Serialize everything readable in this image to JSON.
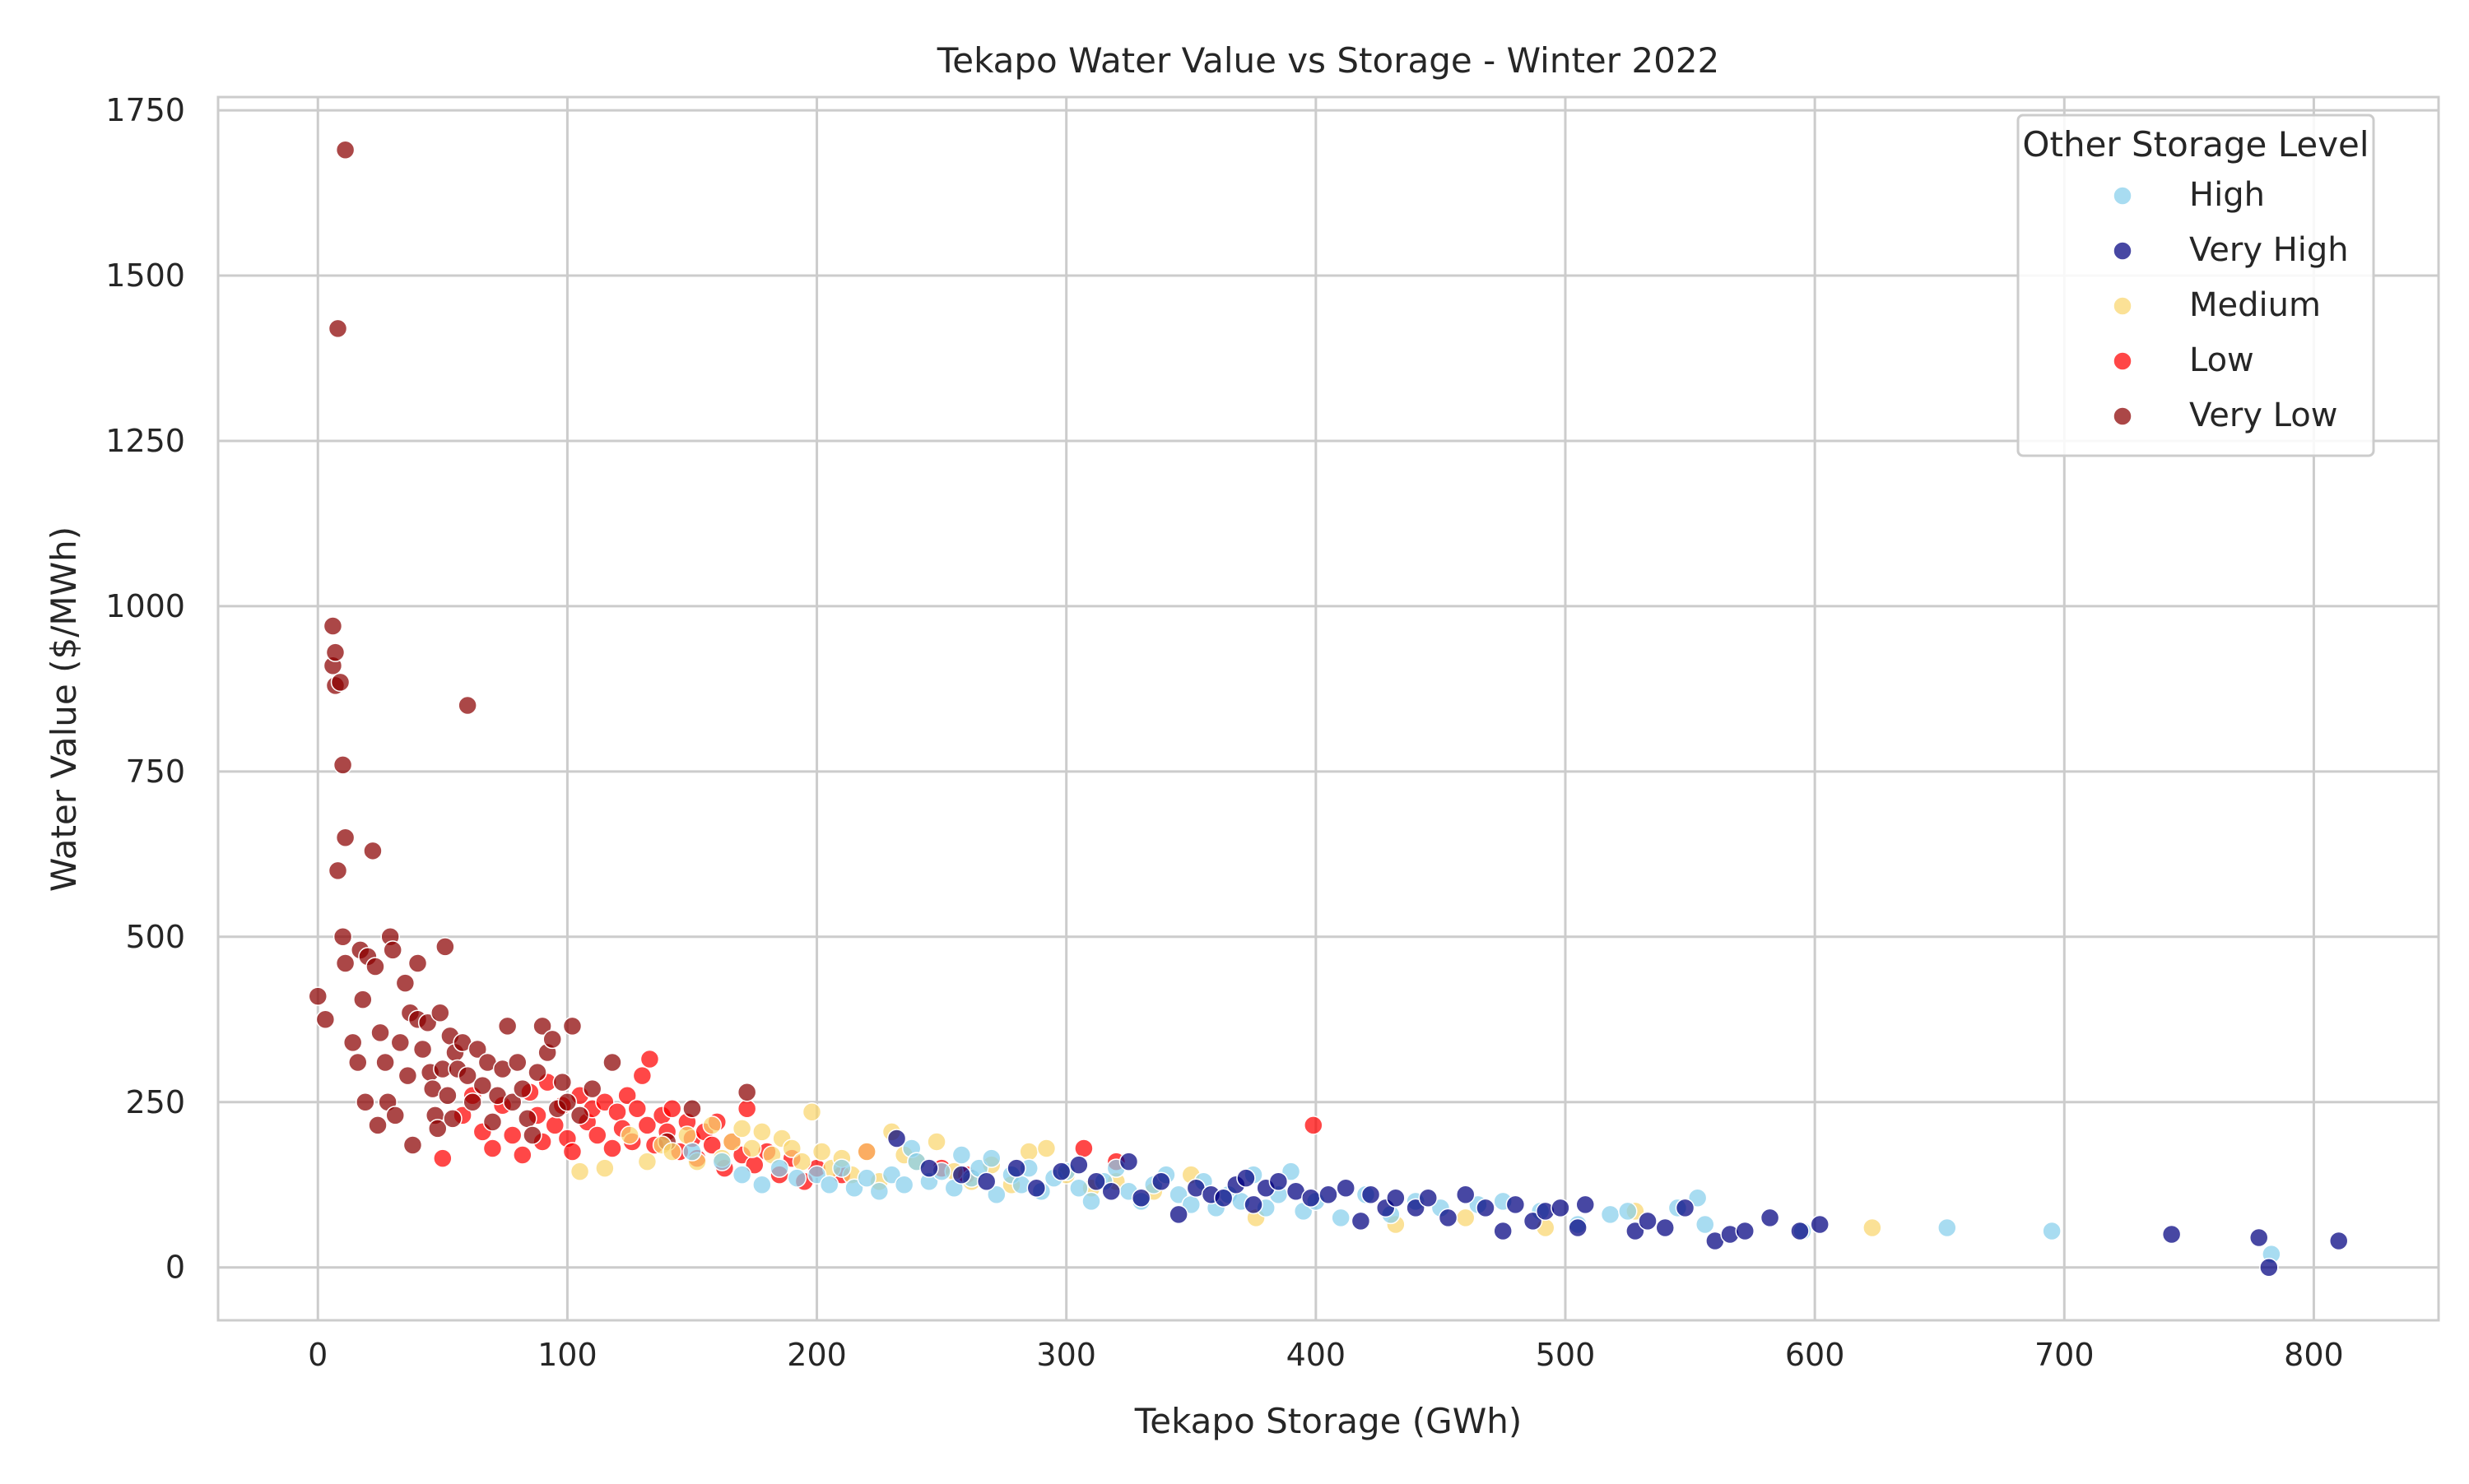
{
  "chart_data": {
    "type": "scatter",
    "title": "Tekapo Water Value vs Storage - Winter 2022",
    "xlabel": "Tekapo Storage (GWh)",
    "ylabel": "Water Value ($/MWh)",
    "xlim": [
      -40,
      850
    ],
    "ylim": [
      -80,
      1770
    ],
    "xticks": [
      0,
      100,
      200,
      300,
      400,
      500,
      600,
      700,
      800
    ],
    "yticks": [
      0,
      250,
      500,
      750,
      1000,
      1250,
      1500,
      1750
    ],
    "grid": true,
    "legend": {
      "title": "Other Storage Level",
      "placement": "top-right"
    },
    "series": [
      {
        "name": "High",
        "color": "#87ceeb",
        "points": [
          [
            150,
            175
          ],
          [
            162,
            160
          ],
          [
            170,
            140
          ],
          [
            178,
            125
          ],
          [
            185,
            150
          ],
          [
            192,
            135
          ],
          [
            200,
            140
          ],
          [
            205,
            125
          ],
          [
            210,
            150
          ],
          [
            215,
            120
          ],
          [
            220,
            135
          ],
          [
            225,
            115
          ],
          [
            230,
            140
          ],
          [
            235,
            125
          ],
          [
            238,
            180
          ],
          [
            240,
            160
          ],
          [
            245,
            130
          ],
          [
            250,
            145
          ],
          [
            255,
            120
          ],
          [
            258,
            170
          ],
          [
            262,
            135
          ],
          [
            265,
            150
          ],
          [
            270,
            165
          ],
          [
            272,
            110
          ],
          [
            278,
            140
          ],
          [
            282,
            125
          ],
          [
            285,
            150
          ],
          [
            290,
            115
          ],
          [
            295,
            135
          ],
          [
            300,
            145
          ],
          [
            305,
            120
          ],
          [
            310,
            100
          ],
          [
            315,
            130
          ],
          [
            320,
            150
          ],
          [
            325,
            115
          ],
          [
            330,
            100
          ],
          [
            335,
            125
          ],
          [
            340,
            140
          ],
          [
            345,
            110
          ],
          [
            350,
            95
          ],
          [
            355,
            130
          ],
          [
            360,
            90
          ],
          [
            365,
            110
          ],
          [
            370,
            100
          ],
          [
            375,
            140
          ],
          [
            380,
            90
          ],
          [
            385,
            110
          ],
          [
            390,
            145
          ],
          [
            395,
            85
          ],
          [
            400,
            100
          ],
          [
            410,
            75
          ],
          [
            420,
            110
          ],
          [
            430,
            80
          ],
          [
            440,
            100
          ],
          [
            450,
            90
          ],
          [
            465,
            95
          ],
          [
            475,
            100
          ],
          [
            490,
            85
          ],
          [
            505,
            65
          ],
          [
            518,
            80
          ],
          [
            525,
            85
          ],
          [
            545,
            90
          ],
          [
            553,
            105
          ],
          [
            556,
            65
          ],
          [
            595,
            55
          ],
          [
            653,
            60
          ],
          [
            695,
            55
          ],
          [
            783,
            20
          ]
        ]
      },
      {
        "name": "Very High",
        "color": "#00007f",
        "points": [
          [
            232,
            195
          ],
          [
            245,
            150
          ],
          [
            258,
            140
          ],
          [
            268,
            130
          ],
          [
            280,
            150
          ],
          [
            288,
            120
          ],
          [
            298,
            145
          ],
          [
            305,
            155
          ],
          [
            312,
            130
          ],
          [
            318,
            115
          ],
          [
            325,
            160
          ],
          [
            330,
            105
          ],
          [
            338,
            130
          ],
          [
            345,
            80
          ],
          [
            352,
            120
          ],
          [
            358,
            110
          ],
          [
            363,
            105
          ],
          [
            368,
            125
          ],
          [
            372,
            135
          ],
          [
            375,
            95
          ],
          [
            380,
            120
          ],
          [
            385,
            130
          ],
          [
            392,
            115
          ],
          [
            398,
            105
          ],
          [
            405,
            110
          ],
          [
            412,
            120
          ],
          [
            418,
            70
          ],
          [
            422,
            110
          ],
          [
            428,
            90
          ],
          [
            432,
            105
          ],
          [
            440,
            90
          ],
          [
            445,
            105
          ],
          [
            453,
            75
          ],
          [
            460,
            110
          ],
          [
            468,
            90
          ],
          [
            475,
            55
          ],
          [
            480,
            95
          ],
          [
            487,
            70
          ],
          [
            492,
            85
          ],
          [
            498,
            90
          ],
          [
            505,
            60
          ],
          [
            508,
            95
          ],
          [
            528,
            55
          ],
          [
            533,
            70
          ],
          [
            540,
            60
          ],
          [
            548,
            90
          ],
          [
            560,
            40
          ],
          [
            566,
            50
          ],
          [
            572,
            55
          ],
          [
            582,
            75
          ],
          [
            594,
            55
          ],
          [
            602,
            65
          ],
          [
            743,
            50
          ],
          [
            778,
            45
          ],
          [
            782,
            0
          ],
          [
            810,
            40
          ]
        ]
      },
      {
        "name": "Medium",
        "color": "#f9d56e",
        "points": [
          [
            105,
            145
          ],
          [
            115,
            150
          ],
          [
            125,
            200
          ],
          [
            132,
            160
          ],
          [
            138,
            185
          ],
          [
            142,
            175
          ],
          [
            148,
            200
          ],
          [
            152,
            160
          ],
          [
            158,
            215
          ],
          [
            162,
            165
          ],
          [
            166,
            190
          ],
          [
            170,
            210
          ],
          [
            174,
            180
          ],
          [
            178,
            205
          ],
          [
            182,
            170
          ],
          [
            186,
            195
          ],
          [
            190,
            180
          ],
          [
            194,
            160
          ],
          [
            198,
            235
          ],
          [
            202,
            175
          ],
          [
            206,
            150
          ],
          [
            210,
            165
          ],
          [
            214,
            140
          ],
          [
            220,
            175
          ],
          [
            225,
            130
          ],
          [
            230,
            205
          ],
          [
            235,
            170
          ],
          [
            240,
            160
          ],
          [
            248,
            190
          ],
          [
            255,
            145
          ],
          [
            262,
            130
          ],
          [
            270,
            155
          ],
          [
            278,
            125
          ],
          [
            285,
            175
          ],
          [
            292,
            180
          ],
          [
            300,
            140
          ],
          [
            310,
            120
          ],
          [
            320,
            130
          ],
          [
            335,
            115
          ],
          [
            350,
            140
          ],
          [
            376,
            75
          ],
          [
            432,
            65
          ],
          [
            460,
            75
          ],
          [
            492,
            60
          ],
          [
            528,
            85
          ],
          [
            623,
            60
          ]
        ]
      },
      {
        "name": "Low",
        "color": "#ff0000",
        "points": [
          [
            50,
            165
          ],
          [
            58,
            230
          ],
          [
            62,
            260
          ],
          [
            66,
            205
          ],
          [
            70,
            180
          ],
          [
            74,
            245
          ],
          [
            78,
            200
          ],
          [
            82,
            170
          ],
          [
            85,
            265
          ],
          [
            88,
            230
          ],
          [
            90,
            190
          ],
          [
            92,
            280
          ],
          [
            95,
            215
          ],
          [
            98,
            245
          ],
          [
            100,
            195
          ],
          [
            102,
            175
          ],
          [
            105,
            260
          ],
          [
            108,
            220
          ],
          [
            110,
            240
          ],
          [
            112,
            200
          ],
          [
            115,
            250
          ],
          [
            118,
            180
          ],
          [
            120,
            235
          ],
          [
            122,
            210
          ],
          [
            124,
            260
          ],
          [
            126,
            190
          ],
          [
            128,
            240
          ],
          [
            130,
            290
          ],
          [
            132,
            215
          ],
          [
            133,
            315
          ],
          [
            135,
            185
          ],
          [
            138,
            230
          ],
          [
            140,
            205
          ],
          [
            142,
            240
          ],
          [
            145,
            175
          ],
          [
            148,
            220
          ],
          [
            150,
            195
          ],
          [
            152,
            165
          ],
          [
            155,
            205
          ],
          [
            158,
            185
          ],
          [
            160,
            220
          ],
          [
            163,
            150
          ],
          [
            166,
            190
          ],
          [
            170,
            170
          ],
          [
            172,
            240
          ],
          [
            175,
            155
          ],
          [
            180,
            175
          ],
          [
            185,
            140
          ],
          [
            190,
            165
          ],
          [
            195,
            130
          ],
          [
            200,
            150
          ],
          [
            210,
            140
          ],
          [
            220,
            175
          ],
          [
            250,
            150
          ],
          [
            260,
            140
          ],
          [
            307,
            180
          ],
          [
            320,
            160
          ],
          [
            399,
            215
          ]
        ]
      },
      {
        "name": "Very Low",
        "color": "#8b0000",
        "points": [
          [
            0,
            410
          ],
          [
            3,
            375
          ],
          [
            6,
            970
          ],
          [
            6,
            910
          ],
          [
            7,
            930
          ],
          [
            7,
            880
          ],
          [
            8,
            600
          ],
          [
            8,
            1420
          ],
          [
            9,
            885
          ],
          [
            10,
            500
          ],
          [
            10,
            760
          ],
          [
            11,
            460
          ],
          [
            11,
            1690
          ],
          [
            11,
            650
          ],
          [
            14,
            340
          ],
          [
            16,
            310
          ],
          [
            17,
            480
          ],
          [
            18,
            405
          ],
          [
            19,
            250
          ],
          [
            20,
            470
          ],
          [
            22,
            630
          ],
          [
            23,
            455
          ],
          [
            24,
            215
          ],
          [
            25,
            355
          ],
          [
            27,
            310
          ],
          [
            28,
            250
          ],
          [
            29,
            500
          ],
          [
            30,
            480
          ],
          [
            31,
            230
          ],
          [
            33,
            340
          ],
          [
            35,
            430
          ],
          [
            36,
            290
          ],
          [
            37,
            385
          ],
          [
            38,
            185
          ],
          [
            40,
            460
          ],
          [
            40,
            375
          ],
          [
            42,
            330
          ],
          [
            44,
            370
          ],
          [
            45,
            295
          ],
          [
            46,
            270
          ],
          [
            47,
            230
          ],
          [
            48,
            210
          ],
          [
            49,
            385
          ],
          [
            50,
            300
          ],
          [
            51,
            485
          ],
          [
            52,
            260
          ],
          [
            53,
            350
          ],
          [
            54,
            225
          ],
          [
            55,
            325
          ],
          [
            56,
            300
          ],
          [
            58,
            340
          ],
          [
            60,
            290
          ],
          [
            60,
            850
          ],
          [
            62,
            250
          ],
          [
            64,
            330
          ],
          [
            66,
            275
          ],
          [
            68,
            310
          ],
          [
            70,
            220
          ],
          [
            72,
            260
          ],
          [
            74,
            300
          ],
          [
            76,
            365
          ],
          [
            78,
            250
          ],
          [
            80,
            310
          ],
          [
            82,
            270
          ],
          [
            84,
            225
          ],
          [
            86,
            200
          ],
          [
            88,
            295
          ],
          [
            90,
            365
          ],
          [
            92,
            325
          ],
          [
            94,
            345
          ],
          [
            96,
            240
          ],
          [
            98,
            280
          ],
          [
            100,
            250
          ],
          [
            102,
            365
          ],
          [
            105,
            230
          ],
          [
            110,
            270
          ],
          [
            118,
            310
          ],
          [
            140,
            190
          ],
          [
            150,
            240
          ],
          [
            172,
            265
          ]
        ]
      }
    ]
  }
}
